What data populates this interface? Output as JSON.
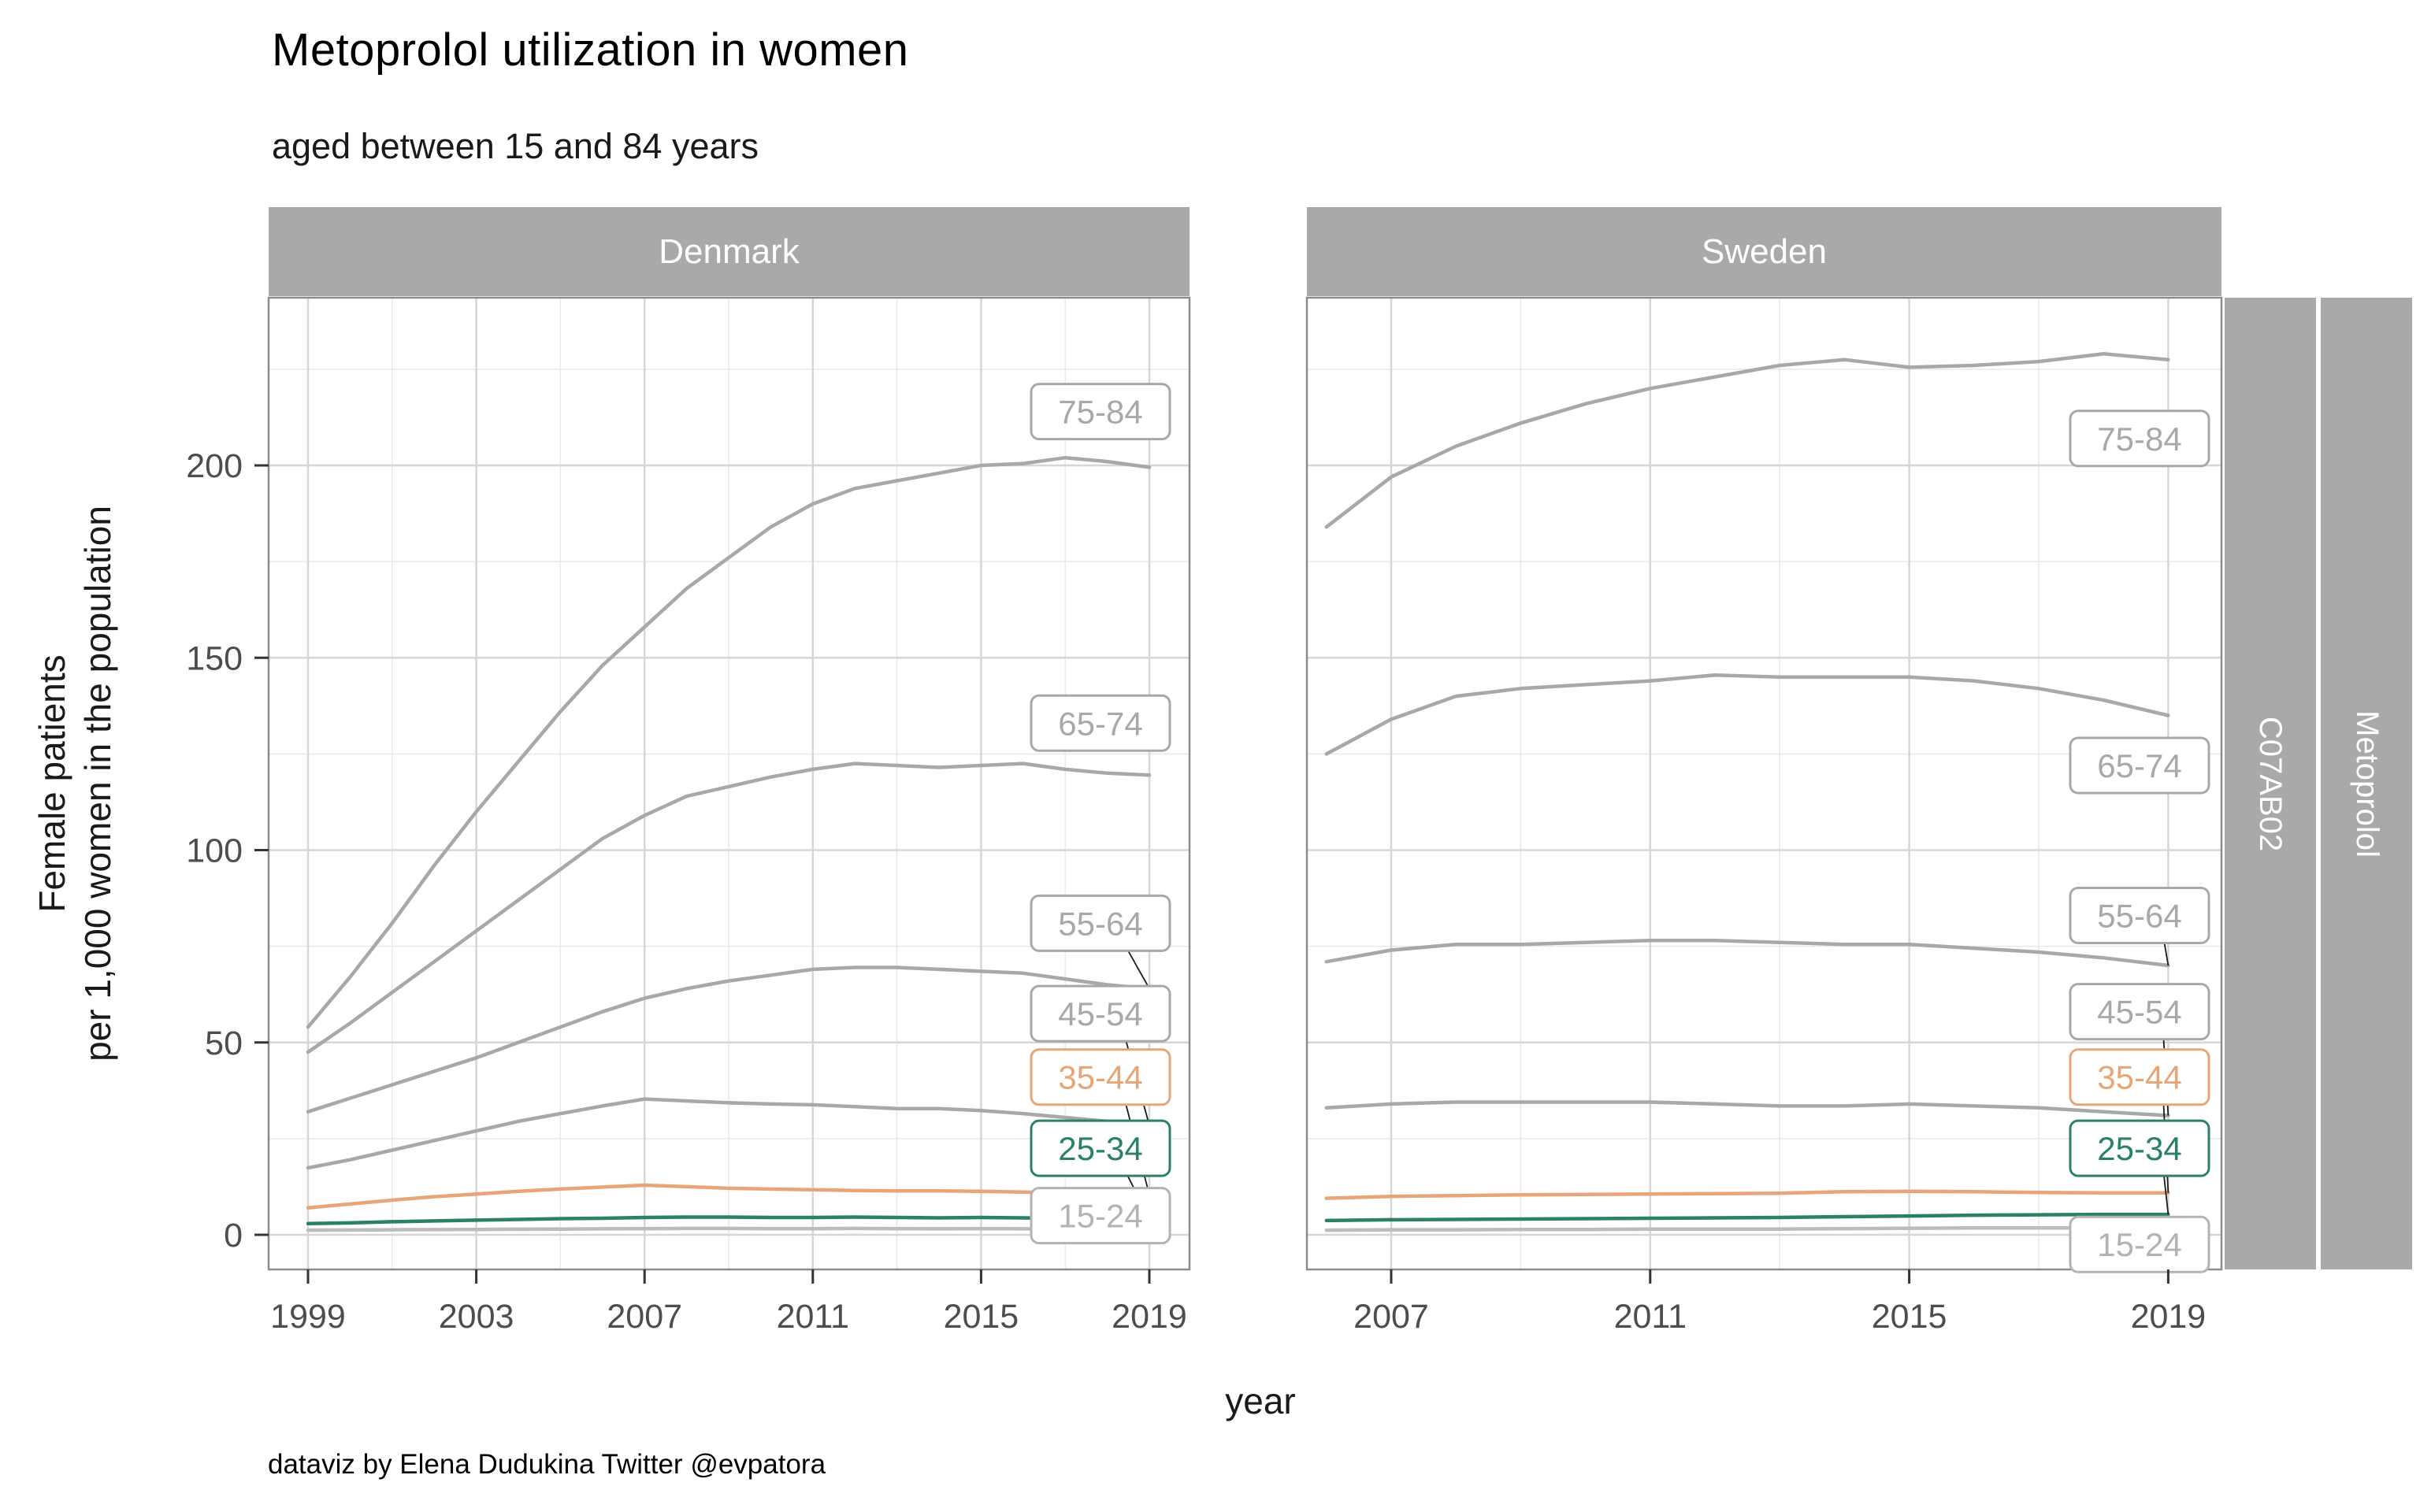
{
  "chart_data": {
    "type": "line",
    "title": "Metoprolol utilization in women",
    "subtitle": "aged between 15 and 84 years",
    "caption": "dataviz by Elena Dudukina Twitter @evpatora",
    "xlabel": "year",
    "ylabel_line1": "Female patients",
    "ylabel_line2": "per 1,000 women in the population",
    "facet_columns": [
      "Denmark",
      "Sweden"
    ],
    "facet_rows": [
      "C07AB02",
      "Metoprolol"
    ],
    "y_axis": {
      "ticks": [
        0,
        50,
        100,
        150,
        200
      ],
      "minor": [
        25,
        75,
        125,
        175,
        225
      ],
      "range": [
        -9,
        243
      ]
    },
    "x_axis": {
      "denmark": {
        "ticks": [
          1999,
          2003,
          2007,
          2011,
          2015,
          2019
        ],
        "minor": [
          2001,
          2005,
          2009,
          2013,
          2017
        ]
      },
      "sweden": {
        "ticks": [
          2007,
          2011,
          2015,
          2019
        ],
        "minor": [
          2009,
          2013,
          2017
        ]
      }
    },
    "years": {
      "denmark": [
        1999,
        2000,
        2001,
        2002,
        2003,
        2004,
        2005,
        2006,
        2007,
        2008,
        2009,
        2010,
        2011,
        2012,
        2013,
        2014,
        2015,
        2016,
        2017,
        2018,
        2019
      ],
      "sweden": [
        2006,
        2007,
        2008,
        2009,
        2010,
        2011,
        2012,
        2013,
        2014,
        2015,
        2016,
        2017,
        2018,
        2019
      ]
    },
    "series": [
      {
        "label": "75-84",
        "color": "#a8a8a8",
        "label_color": "#a8a8a8",
        "leader": false,
        "label_value_denmark": 214,
        "label_value_sweden": 207,
        "values_denmark": [
          54,
          67,
          81,
          96,
          110,
          123,
          136,
          148,
          158,
          168,
          176,
          184,
          190,
          194,
          196,
          198,
          200,
          200.5,
          202,
          201,
          199.5
        ],
        "values_sweden": [
          184,
          197,
          205,
          211,
          216,
          220,
          223,
          226,
          227.5,
          225.5,
          226,
          227,
          229,
          227.5
        ]
      },
      {
        "label": "65-74",
        "color": "#a8a8a8",
        "label_color": "#a8a8a8",
        "leader": false,
        "label_value_denmark": 133,
        "label_value_sweden": 122,
        "values_denmark": [
          47.5,
          55,
          63,
          71,
          79,
          87,
          95,
          103,
          109,
          114,
          116.5,
          119,
          121,
          122.5,
          122,
          121.5,
          122,
          122.5,
          121,
          120,
          119.5
        ],
        "values_sweden": [
          125,
          134,
          140,
          142,
          143,
          144,
          145.5,
          145,
          145,
          145,
          144,
          142,
          139,
          135
        ]
      },
      {
        "label": "55-64",
        "color": "#a8a8a8",
        "label_color": "#a8a8a8",
        "leader": true,
        "label_value_denmark": 81,
        "label_value_sweden": 83,
        "values_denmark": [
          32,
          35.5,
          39,
          42.5,
          46,
          50,
          54,
          58,
          61.5,
          64,
          66,
          67.5,
          69,
          69.5,
          69.5,
          69,
          68.5,
          68,
          66.5,
          65,
          64
        ],
        "values_sweden": [
          71,
          74,
          75.5,
          75.5,
          76,
          76.5,
          76.5,
          76,
          75.5,
          75.5,
          74.5,
          73.5,
          72,
          70
        ]
      },
      {
        "label": "45-54",
        "color": "#a8a8a8",
        "label_color": "#a8a8a8",
        "leader": true,
        "label_value_denmark": 57.5,
        "label_value_sweden": 58,
        "values_denmark": [
          17.4,
          19.5,
          22,
          24.5,
          27,
          29.5,
          31.5,
          33.5,
          35.3,
          34.8,
          34.3,
          34,
          33.8,
          33.3,
          32.8,
          32.8,
          32.3,
          31.5,
          30.5,
          29.5,
          28.5
        ],
        "values_sweden": [
          33,
          34,
          34.5,
          34.5,
          34.5,
          34.5,
          34,
          33.5,
          33.5,
          34,
          33.5,
          33,
          32,
          31
        ]
      },
      {
        "label": "35-44",
        "color": "#e7a677",
        "label_color": "#e7a677",
        "leader": true,
        "label_value_denmark": 41,
        "label_value_sweden": 41,
        "values_denmark": [
          7,
          8,
          9,
          9.9,
          10.6,
          11.3,
          11.9,
          12.4,
          12.9,
          12.5,
          12.1,
          11.9,
          11.7,
          11.5,
          11.4,
          11.4,
          11.3,
          11.1,
          10.9,
          10.6,
          10.4
        ],
        "values_sweden": [
          9.5,
          10,
          10.2,
          10.4,
          10.5,
          10.6,
          10.7,
          10.8,
          11.2,
          11.3,
          11.2,
          11,
          10.9,
          10.9
        ]
      },
      {
        "label": "25-34",
        "color": "#2b8069",
        "label_color": "#2b8069",
        "leader": true,
        "label_value_denmark": 22.5,
        "label_value_sweden": 22.5,
        "values_denmark": [
          2.9,
          3.1,
          3.4,
          3.6,
          3.8,
          4,
          4.2,
          4.3,
          4.5,
          4.6,
          4.6,
          4.5,
          4.5,
          4.6,
          4.5,
          4.4,
          4.5,
          4.4,
          4.3,
          4.2,
          4.1
        ],
        "values_sweden": [
          3.7,
          3.9,
          4,
          4.1,
          4.2,
          4.3,
          4.4,
          4.5,
          4.7,
          4.9,
          5.1,
          5.2,
          5.3,
          5.3
        ]
      },
      {
        "label": "15-24",
        "color": "#bcbcbc",
        "label_color": "#b3b3b3",
        "leader": false,
        "label_value_denmark": 5,
        "label_value_sweden": -2.5,
        "values_denmark": [
          1.2,
          1.25,
          1.3,
          1.35,
          1.4,
          1.45,
          1.5,
          1.55,
          1.6,
          1.65,
          1.65,
          1.6,
          1.6,
          1.65,
          1.6,
          1.55,
          1.6,
          1.55,
          1.5,
          1.5,
          1.45
        ],
        "values_sweden": [
          1.2,
          1.3,
          1.3,
          1.4,
          1.4,
          1.5,
          1.5,
          1.5,
          1.6,
          1.7,
          1.8,
          1.8,
          1.8,
          1.8
        ]
      }
    ],
    "colors": {
      "grid_major": "#d6d6d6",
      "grid_minor": "#e9e9e9",
      "panel_border": "#8c8c8c",
      "strip_bg": "#a9a9a9",
      "strip_text": "#ffffff",
      "tick_text": "#4d4d4d",
      "tick_mark": "#333333",
      "leader": "#1a1a1a",
      "label_box_bg": "#ffffff"
    },
    "legend_position": "labels-on-plot",
    "grid": true
  }
}
